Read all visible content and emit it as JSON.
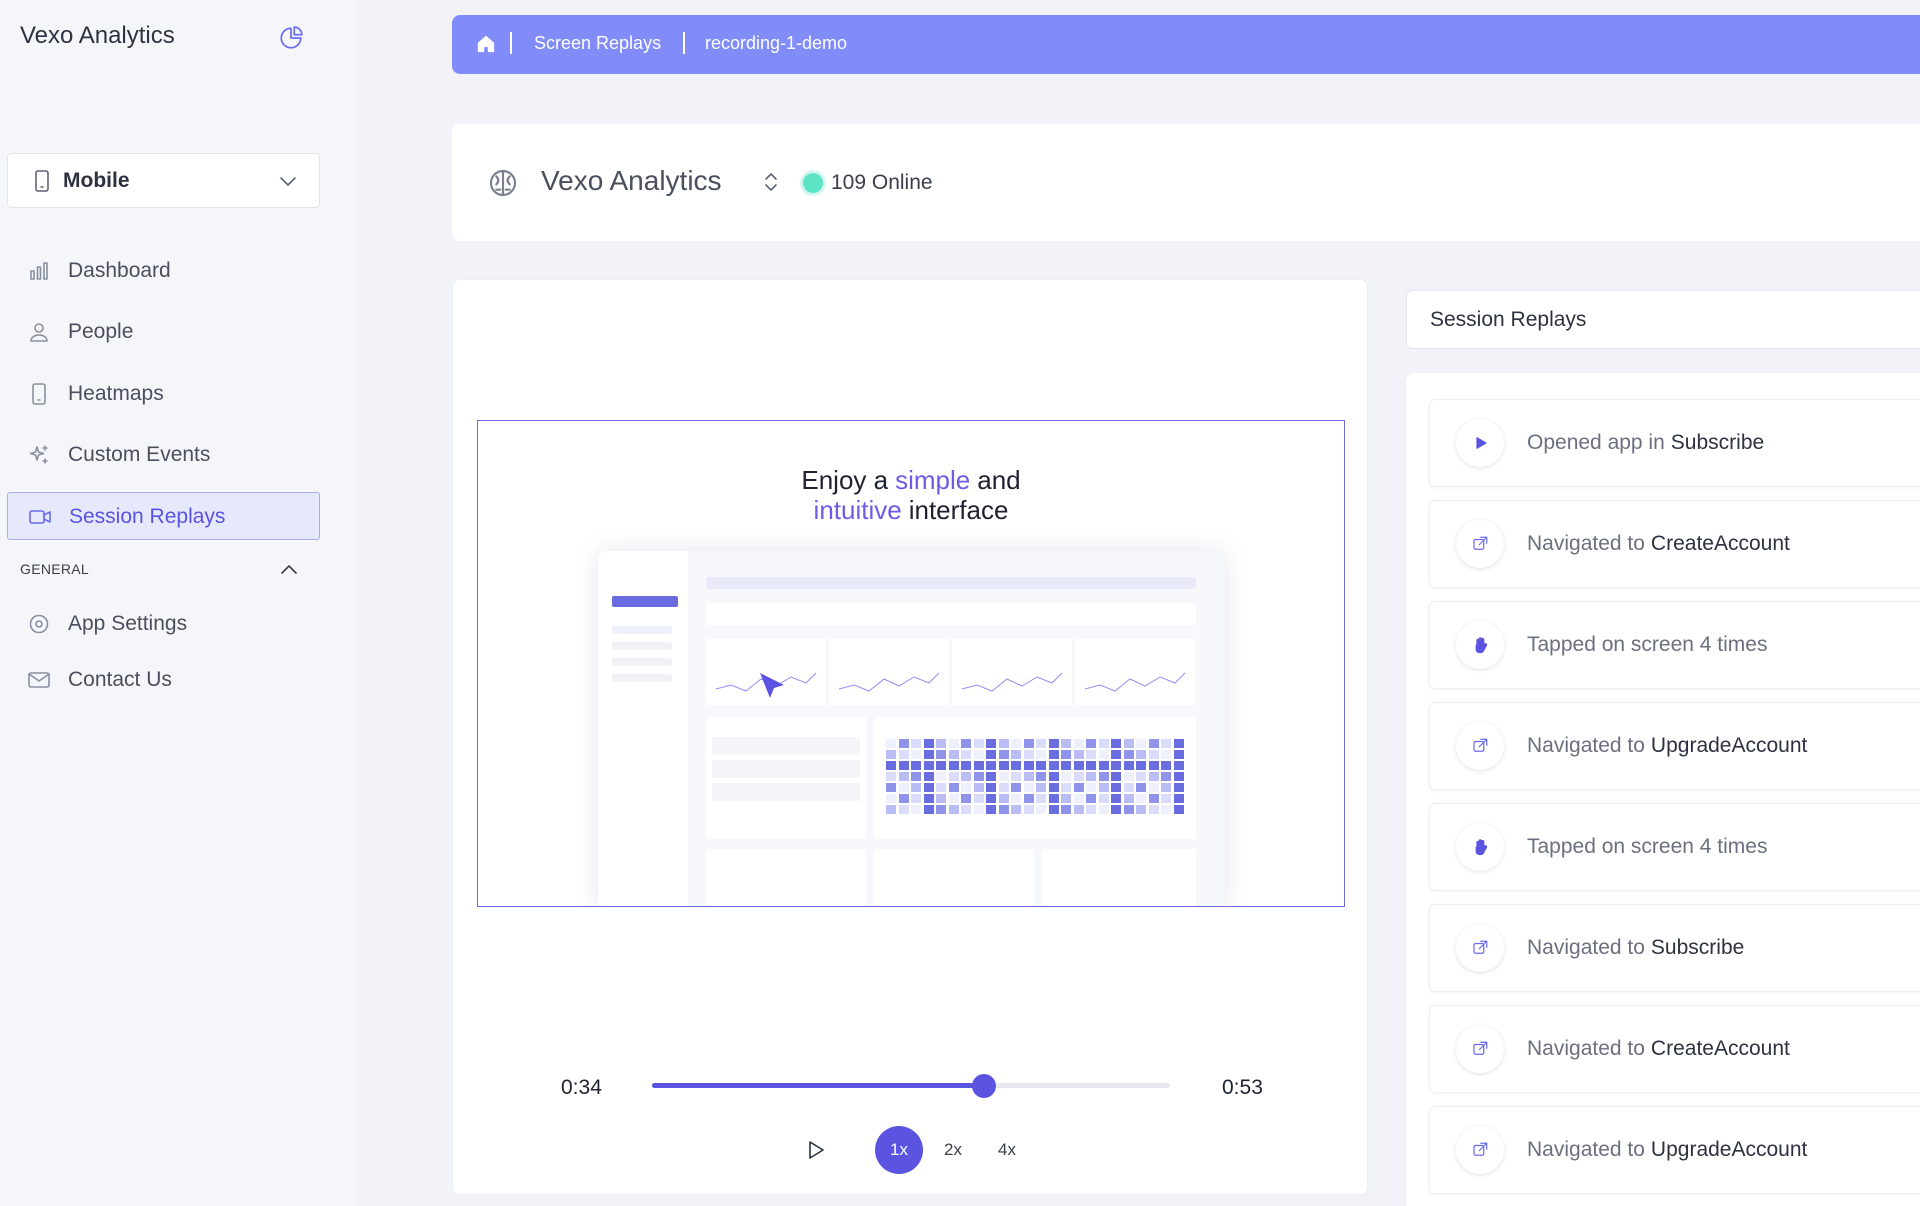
{
  "sidebar": {
    "brand": "Vexo Analytics",
    "device": "Mobile",
    "nav": [
      "Dashboard",
      "People",
      "Heatmaps",
      "Custom Events",
      "Session Replays"
    ],
    "section": "GENERAL",
    "general": [
      "App Settings",
      "Contact Us"
    ]
  },
  "breadcrumb": [
    "Screen Replays",
    "recording-1-demo"
  ],
  "header": {
    "app_name": "Vexo Analytics",
    "online": "109 Online"
  },
  "player": {
    "headline": [
      [
        "Enjoy a",
        "simple",
        "and"
      ],
      [
        "intuitive",
        "interface"
      ]
    ],
    "current_time": "0:34",
    "duration": "0:53",
    "speeds": [
      "1x",
      "2x",
      "4x"
    ]
  },
  "session": {
    "title": "Session Replays",
    "events": [
      {
        "action": "Opened app in",
        "target": "Subscribe"
      },
      {
        "action": "Navigated to",
        "target": "CreateAccount"
      },
      {
        "action": "Tapped on screen 4 times"
      },
      {
        "action": "Navigated to",
        "target": "UpgradeAccount"
      },
      {
        "action": "Tapped on screen 4 times"
      },
      {
        "action": "Navigated to",
        "target": "Subscribe"
      },
      {
        "action": "Navigated to",
        "target": "CreateAccount"
      },
      {
        "action": "Navigated to",
        "target": "UpgradeAccount"
      }
    ]
  }
}
